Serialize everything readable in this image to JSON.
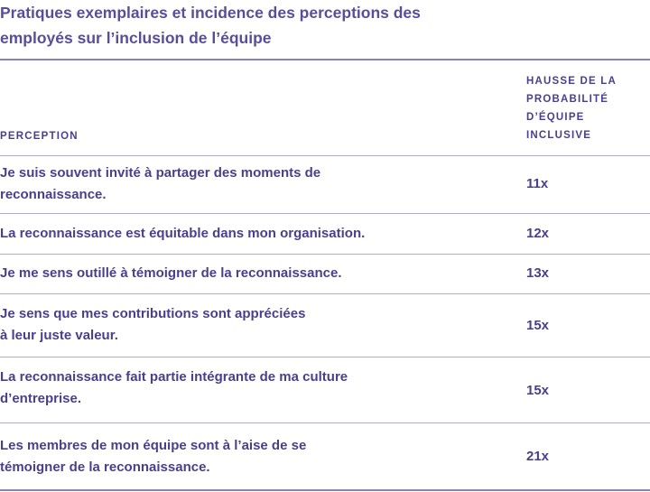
{
  "title": {
    "line1": "Pratiques exemplaires et incidence des perceptions des",
    "line2": "employés sur l’inclusion de l’équipe"
  },
  "table": {
    "headers": {
      "perception": "PERCEPTION",
      "hausse": [
        "HAUSSE DE LA",
        "PROBABILITÉ",
        "D’ÉQUIPE",
        "INCLUSIVE"
      ]
    },
    "rows": [
      {
        "perception": [
          "Je suis souvent invité à partager des moments de",
          "reconnaissance."
        ],
        "value": "11x"
      },
      {
        "perception": [
          "La reconnaissance est équitable dans mon organisation."
        ],
        "value": "12x"
      },
      {
        "perception": [
          "Je me sens outillé à témoigner de la reconnaissance."
        ],
        "value": "13x"
      },
      {
        "perception": [
          "Je sens que mes contributions sont appréciées",
          "à leur juste valeur."
        ],
        "value": "15x"
      },
      {
        "perception": [
          "La reconnaissance fait partie intégrante de ma culture",
          "d’entreprise."
        ],
        "value": "15x"
      },
      {
        "perception": [
          "Les membres de mon équipe sont à l’aise de se",
          "témoigner de la reconnaissance."
        ],
        "value": "21x"
      }
    ]
  }
}
